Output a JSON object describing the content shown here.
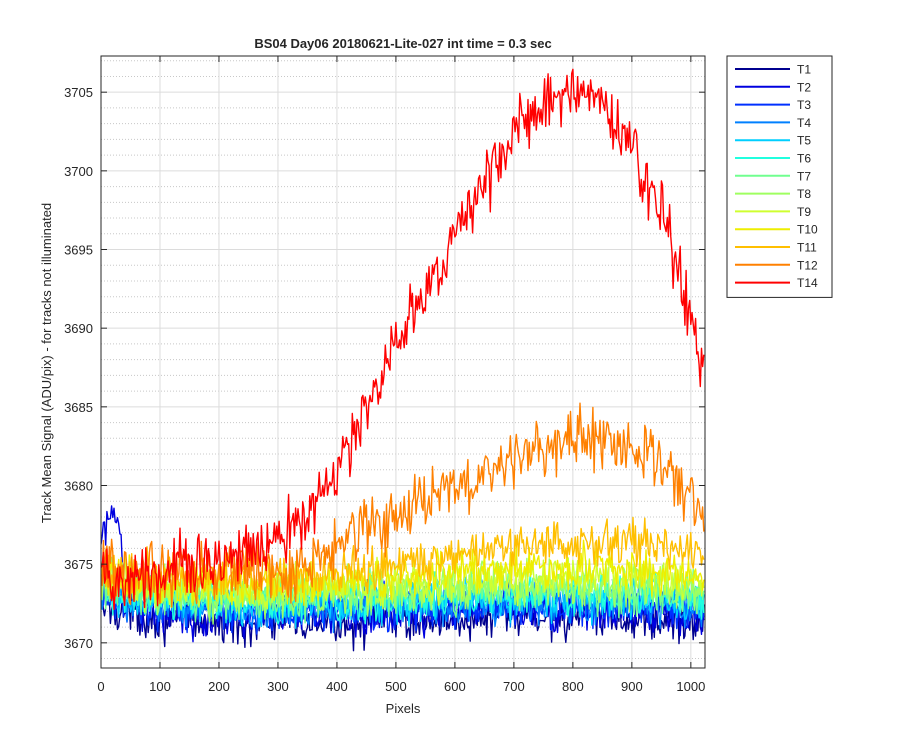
{
  "chart_data": {
    "type": "line",
    "title": "BS04 Day06 20180621-Lite-027 int time = 0.3 sec",
    "xlabel": "Pixels",
    "ylabel": "Track Mean Signal (ADU/pix) - for tracks not illuminated",
    "xlim": [
      0,
      1024
    ],
    "ylim": [
      3668.4,
      3707.3
    ],
    "xticks": [
      0,
      100,
      200,
      300,
      400,
      500,
      600,
      700,
      800,
      900,
      1000
    ],
    "yticks": [
      3670,
      3675,
      3680,
      3685,
      3690,
      3695,
      3700,
      3705
    ],
    "grid": true,
    "minor_grid": true,
    "legend_position": "outside-top-right",
    "series": [
      {
        "name": "T1",
        "color": "#00008f",
        "x": [
          0,
          100,
          200,
          300,
          400,
          500,
          600,
          700,
          800,
          900,
          1000,
          1023
        ],
        "y": [
          3672.3,
          3671.6,
          3671.3,
          3671.2,
          3671.3,
          3671.4,
          3671.5,
          3671.6,
          3671.6,
          3671.5,
          3671.4,
          3671.3
        ]
      },
      {
        "name": "T2",
        "color": "#0000df",
        "x": [
          0,
          10,
          20,
          30,
          40,
          100,
          200,
          300,
          400,
          500,
          600,
          700,
          800,
          900,
          1000,
          1023
        ],
        "y": [
          3676.0,
          3677.4,
          3678.8,
          3677.0,
          3673.0,
          3672.0,
          3671.8,
          3671.7,
          3671.8,
          3671.9,
          3672.0,
          3672.1,
          3672.1,
          3672.0,
          3671.9,
          3671.8
        ]
      },
      {
        "name": "T3",
        "color": "#0030ff",
        "x": [
          0,
          100,
          200,
          300,
          400,
          500,
          600,
          700,
          800,
          900,
          1000,
          1023
        ],
        "y": [
          3672.8,
          3672.3,
          3672.1,
          3672.0,
          3672.1,
          3672.2,
          3672.3,
          3672.4,
          3672.4,
          3672.3,
          3672.2,
          3672.1
        ]
      },
      {
        "name": "T4",
        "color": "#0080ff",
        "x": [
          0,
          100,
          200,
          300,
          400,
          500,
          600,
          700,
          800,
          900,
          1000,
          1023
        ],
        "y": [
          3673.0,
          3672.5,
          3672.3,
          3672.2,
          3672.3,
          3672.4,
          3672.5,
          3672.6,
          3672.6,
          3672.5,
          3672.4,
          3672.3
        ]
      },
      {
        "name": "T5",
        "color": "#00cfff",
        "x": [
          0,
          100,
          200,
          300,
          400,
          500,
          600,
          700,
          800,
          900,
          1000,
          1023
        ],
        "y": [
          3673.2,
          3672.7,
          3672.5,
          3672.4,
          3672.5,
          3672.6,
          3672.8,
          3672.9,
          3672.9,
          3672.8,
          3672.6,
          3672.5
        ]
      },
      {
        "name": "T6",
        "color": "#20ffdf",
        "x": [
          0,
          100,
          200,
          300,
          400,
          500,
          600,
          700,
          800,
          900,
          1000,
          1023
        ],
        "y": [
          3673.4,
          3672.9,
          3672.7,
          3672.6,
          3672.7,
          3672.9,
          3673.0,
          3673.1,
          3673.1,
          3673.0,
          3672.9,
          3672.8
        ]
      },
      {
        "name": "T7",
        "color": "#70ff8f",
        "x": [
          0,
          100,
          200,
          300,
          400,
          500,
          600,
          700,
          800,
          900,
          1000,
          1023
        ],
        "y": [
          3673.6,
          3673.1,
          3672.9,
          3672.8,
          3673.0,
          3673.1,
          3673.3,
          3673.4,
          3673.4,
          3673.3,
          3673.2,
          3673.0
        ]
      },
      {
        "name": "T8",
        "color": "#9fff60",
        "x": [
          0,
          100,
          200,
          300,
          400,
          500,
          600,
          700,
          800,
          900,
          1000,
          1023
        ],
        "y": [
          3673.8,
          3673.3,
          3673.1,
          3673.1,
          3673.2,
          3673.4,
          3673.6,
          3673.7,
          3673.7,
          3673.6,
          3673.5,
          3673.3
        ]
      },
      {
        "name": "T9",
        "color": "#cfff30",
        "x": [
          0,
          100,
          200,
          300,
          400,
          500,
          600,
          700,
          800,
          900,
          1000,
          1023
        ],
        "y": [
          3674.0,
          3673.5,
          3673.4,
          3673.4,
          3673.5,
          3673.7,
          3673.9,
          3674.0,
          3674.1,
          3674.0,
          3673.8,
          3673.6
        ]
      },
      {
        "name": "T10",
        "color": "#eeee00",
        "x": [
          0,
          100,
          200,
          300,
          400,
          500,
          600,
          700,
          800,
          900,
          1000,
          1023
        ],
        "y": [
          3674.3,
          3673.8,
          3673.7,
          3673.7,
          3673.9,
          3674.2,
          3674.5,
          3674.7,
          3674.8,
          3674.7,
          3674.4,
          3674.1
        ]
      },
      {
        "name": "T11",
        "color": "#ffbf00",
        "x": [
          0,
          100,
          200,
          300,
          400,
          500,
          600,
          700,
          800,
          900,
          1000,
          1023
        ],
        "y": [
          3674.6,
          3674.2,
          3674.1,
          3674.2,
          3674.6,
          3675.2,
          3675.8,
          3676.2,
          3676.5,
          3676.5,
          3676.1,
          3675.5
        ]
      },
      {
        "name": "T12",
        "color": "#ff8000",
        "x": [
          0,
          50,
          100,
          200,
          300,
          350,
          400,
          450,
          500,
          550,
          600,
          650,
          700,
          750,
          800,
          850,
          900,
          950,
          1000,
          1023
        ],
        "y": [
          3674.8,
          3674.5,
          3674.4,
          3674.4,
          3674.6,
          3675.0,
          3676.2,
          3677.5,
          3678.2,
          3678.8,
          3679.8,
          3680.8,
          3681.9,
          3682.6,
          3682.8,
          3683.0,
          3682.8,
          3681.8,
          3679.2,
          3677.5
        ]
      },
      {
        "name": "T14",
        "color": "#ff0000",
        "x": [
          0,
          50,
          100,
          150,
          200,
          250,
          300,
          350,
          400,
          450,
          500,
          550,
          600,
          650,
          700,
          750,
          800,
          850,
          900,
          950,
          1000,
          1023
        ],
        "y": [
          3674.2,
          3674.0,
          3674.4,
          3674.9,
          3675.4,
          3675.9,
          3676.6,
          3677.9,
          3680.8,
          3684.8,
          3688.6,
          3692.2,
          3695.8,
          3699.3,
          3702.3,
          3704.5,
          3705.1,
          3704.2,
          3701.5,
          3697.3,
          3690.8,
          3687.0
        ]
      }
    ]
  }
}
